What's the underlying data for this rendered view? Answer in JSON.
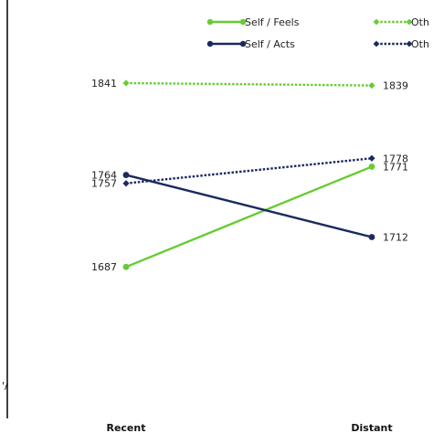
{
  "chart_data": {
    "type": "line",
    "categories": [
      "Recent",
      "Distant"
    ],
    "series": [
      {
        "name": "Self / Feels",
        "values": [
          1687,
          1771
        ],
        "color": "#66cc33",
        "style": "solid"
      },
      {
        "name": "Self / Acts",
        "values": [
          1764,
          1712
        ],
        "color": "#1b2a5e",
        "style": "solid"
      },
      {
        "name": "Oth",
        "values": [
          1841,
          1839
        ],
        "color": "#66cc33",
        "style": "dotted"
      },
      {
        "name": "Oth",
        "values": [
          1757,
          1778
        ],
        "color": "#1b2a5e",
        "style": "dotted"
      }
    ],
    "ylim": [
      1580,
      1880
    ],
    "y_axis_fragment": "'/",
    "legend": "top-right",
    "grid": false
  }
}
